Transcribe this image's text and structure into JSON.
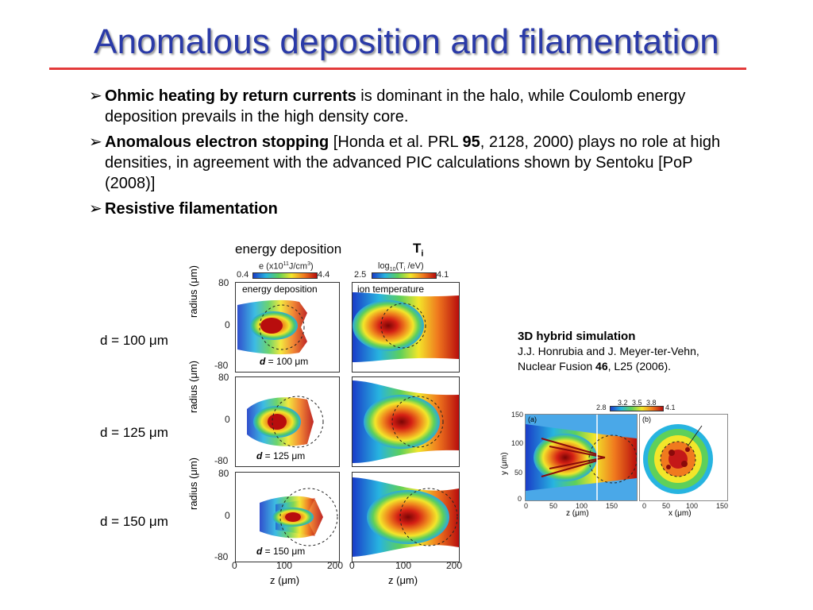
{
  "title": "Anomalous deposition and filamentation",
  "bullets": {
    "b1_bold": "Ohmic heating by return currents",
    "b1_rest": " is dominant in the halo, while Coulomb energy deposition prevails in the high density core.",
    "b2_bold": "Anomalous electron stopping",
    "b2_mid": " [Honda et al. PRL ",
    "b2_bold2": "95",
    "b2_rest": ", 2128, 2000) plays no role at high densities, in agreement with the advanced PIC calculations shown by Sentoku [PoP (2008)]",
    "b3_bold": "Resistive filamentation"
  },
  "figure_left": {
    "col1_label": "energy deposition",
    "col2_label": "T",
    "col2_sub": "i",
    "cbar1_title": "e (x10",
    "cbar1_sup": "11",
    "cbar1_title2": "J/cm",
    "cbar1_sup2": "3",
    "cbar1_title3": ")",
    "cbar1_min": "0.4",
    "cbar1_max": "4.4",
    "cbar2_title": "log",
    "cbar2_sub": "10",
    "cbar2_title2": "(T",
    "cbar2_sub2": "i",
    "cbar2_title3": " /eV)",
    "cbar2_min": "2.5",
    "cbar2_max": "4.1",
    "panel1_inner": "energy deposition",
    "panel2_inner": "ion temperature",
    "ylabel": "radius (μm)",
    "xlabel": "z (μm)",
    "yticks": [
      "80",
      "0",
      "-80"
    ],
    "xticks": [
      "0",
      "100",
      "200"
    ],
    "rows": [
      {
        "side_label": "d  = 100 μm",
        "inset_d": "d",
        "inset_val": " = 100 μm"
      },
      {
        "side_label": "d  = 125 μm",
        "inset_d": "d",
        "inset_val": " = 125 μm"
      },
      {
        "side_label": "d  = 150 μm",
        "inset_d": "d",
        "inset_val": " = 150 μm"
      }
    ]
  },
  "reference": {
    "heading": "3D hybrid simulation",
    "line1": "J.J. Honrubia and J. Meyer-ter-Vehn,",
    "line2_pre": "Nuclear Fusion  ",
    "line2_bold": "46",
    "line2_post": ", L25 (2006)."
  },
  "figure_right": {
    "cbar_labels": [
      "2.8",
      "3.2",
      "3.5",
      "3.8",
      "4.1"
    ],
    "panel_a": "(a)",
    "panel_b": "(b)",
    "annotation": "> 10 keV",
    "ylabel": "y (μm)",
    "xlabel_a": "z (μm)",
    "xlabel_b": "x (μm)",
    "yticks": [
      "150",
      "100",
      "50",
      "0"
    ],
    "xticks_a": [
      "0",
      "50",
      "100",
      "150"
    ],
    "xticks_b": [
      "0",
      "50",
      "100",
      "150"
    ]
  }
}
